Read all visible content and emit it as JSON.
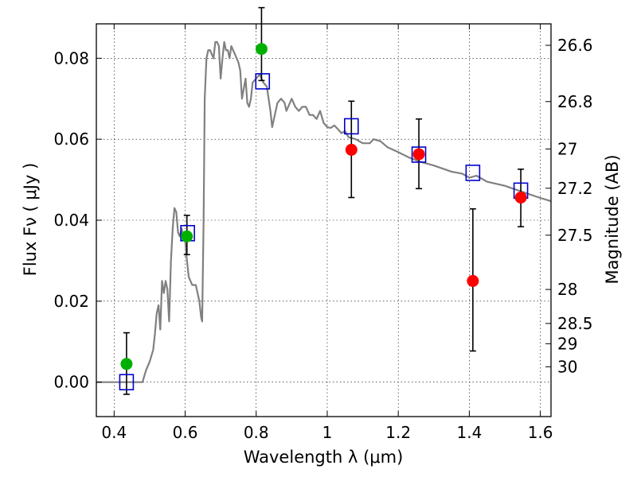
{
  "chart_data": {
    "type": "scatter",
    "xlabel": "Wavelength  λ (μm)",
    "ylabel": "Flux  Fν  ( μJy )",
    "ylabel_right": "Magnitude (AB)",
    "xlim": [
      0.35,
      1.63
    ],
    "ylim": [
      -0.0085,
      0.0885
    ],
    "grid": true,
    "x_ticks": [
      0.4,
      0.6,
      0.8,
      1.0,
      1.2,
      1.4,
      1.6
    ],
    "x_tick_labels": [
      "0.4",
      "0.6",
      "0.8",
      "1",
      "1.2",
      "1.4",
      "1.6"
    ],
    "y_ticks": [
      0.0,
      0.02,
      0.04,
      0.06,
      0.08
    ],
    "y_tick_labels": [
      "0.00",
      "0.02",
      "0.04",
      "0.06",
      "0.08"
    ],
    "right_ticks": [
      {
        "label": "26.6",
        "flux": 0.0832
      },
      {
        "label": "26.8",
        "flux": 0.0693
      },
      {
        "label": "27",
        "flux": 0.0576
      },
      {
        "label": "27.2",
        "flux": 0.0479
      },
      {
        "label": "27.5",
        "flux": 0.0363
      },
      {
        "label": "28",
        "flux": 0.0229
      },
      {
        "label": "28.5",
        "flux": 0.0145
      },
      {
        "label": "29",
        "flux": 0.0095
      },
      {
        "label": "30",
        "flux": 0.0038
      }
    ],
    "sed_model": {
      "color": "#808080",
      "x": [
        0.35,
        0.48,
        0.485,
        0.49,
        0.5,
        0.51,
        0.515,
        0.52,
        0.525,
        0.53,
        0.535,
        0.54,
        0.545,
        0.55,
        0.555,
        0.56,
        0.565,
        0.57,
        0.575,
        0.58,
        0.585,
        0.59,
        0.595,
        0.6,
        0.605,
        0.61,
        0.62,
        0.63,
        0.64,
        0.645,
        0.648,
        0.652,
        0.655,
        0.66,
        0.665,
        0.67,
        0.675,
        0.68,
        0.685,
        0.69,
        0.695,
        0.7,
        0.705,
        0.71,
        0.715,
        0.72,
        0.725,
        0.73,
        0.74,
        0.745,
        0.75,
        0.755,
        0.76,
        0.77,
        0.775,
        0.78,
        0.785,
        0.79,
        0.8,
        0.81,
        0.82,
        0.83,
        0.84,
        0.845,
        0.85,
        0.86,
        0.87,
        0.88,
        0.885,
        0.89,
        0.9,
        0.91,
        0.92,
        0.93,
        0.94,
        0.95,
        0.96,
        0.97,
        0.98,
        0.99,
        1.0,
        1.01,
        1.02,
        1.03,
        1.04,
        1.05,
        1.06,
        1.08,
        1.1,
        1.12,
        1.13,
        1.15,
        1.17,
        1.2,
        1.23,
        1.26,
        1.3,
        1.35,
        1.38,
        1.4,
        1.42,
        1.45,
        1.5,
        1.55,
        1.6,
        1.63
      ],
      "y": [
        0.0,
        0.0,
        0.0015,
        0.003,
        0.005,
        0.008,
        0.012,
        0.017,
        0.019,
        0.013,
        0.025,
        0.022,
        0.025,
        0.023,
        0.015,
        0.03,
        0.038,
        0.043,
        0.042,
        0.037,
        0.036,
        0.038,
        0.036,
        0.035,
        0.03,
        0.026,
        0.024,
        0.024,
        0.02,
        0.016,
        0.015,
        0.04,
        0.07,
        0.08,
        0.082,
        0.082,
        0.081,
        0.08,
        0.084,
        0.084,
        0.083,
        0.075,
        0.08,
        0.084,
        0.082,
        0.082,
        0.08,
        0.083,
        0.081,
        0.08,
        0.079,
        0.077,
        0.07,
        0.075,
        0.069,
        0.068,
        0.07,
        0.074,
        0.075,
        0.076,
        0.074,
        0.073,
        0.067,
        0.063,
        0.065,
        0.069,
        0.07,
        0.069,
        0.067,
        0.068,
        0.07,
        0.068,
        0.067,
        0.068,
        0.068,
        0.066,
        0.066,
        0.065,
        0.067,
        0.064,
        0.063,
        0.0628,
        0.0634,
        0.0625,
        0.0615,
        0.062,
        0.0605,
        0.06,
        0.059,
        0.059,
        0.06,
        0.0595,
        0.058,
        0.0568,
        0.0555,
        0.0545,
        0.0535,
        0.052,
        0.0515,
        0.0505,
        0.051,
        0.0495,
        0.0485,
        0.047,
        0.0455,
        0.0447
      ]
    },
    "series": [
      {
        "color": "#00b000",
        "marker": "filled-circle",
        "x": [
          0.435,
          0.605,
          0.815
        ],
        "y": [
          0.0045,
          0.036,
          0.0823
        ],
        "yerr_low": [
          0.0075,
          0.0045,
          0.0078
        ],
        "yerr_high": [
          0.0077,
          0.0052,
          0.0102
        ]
      },
      {
        "color": "#ff0000",
        "marker": "filled-circle",
        "x": [
          1.068,
          1.258,
          1.41,
          1.545
        ],
        "y": [
          0.0574,
          0.0563,
          0.025,
          0.0456
        ],
        "yerr_low": [
          0.0118,
          0.0085,
          0.0173,
          0.0072
        ],
        "yerr_high": [
          0.012,
          0.0087,
          0.0178,
          0.007
        ]
      },
      {
        "color": "#0000cc",
        "marker": "open-square",
        "x": [
          0.435,
          0.607,
          0.818,
          1.068,
          1.258,
          1.41,
          1.545
        ],
        "y": [
          0.0,
          0.0368,
          0.0743,
          0.0632,
          0.0562,
          0.0517,
          0.0473
        ]
      }
    ]
  }
}
